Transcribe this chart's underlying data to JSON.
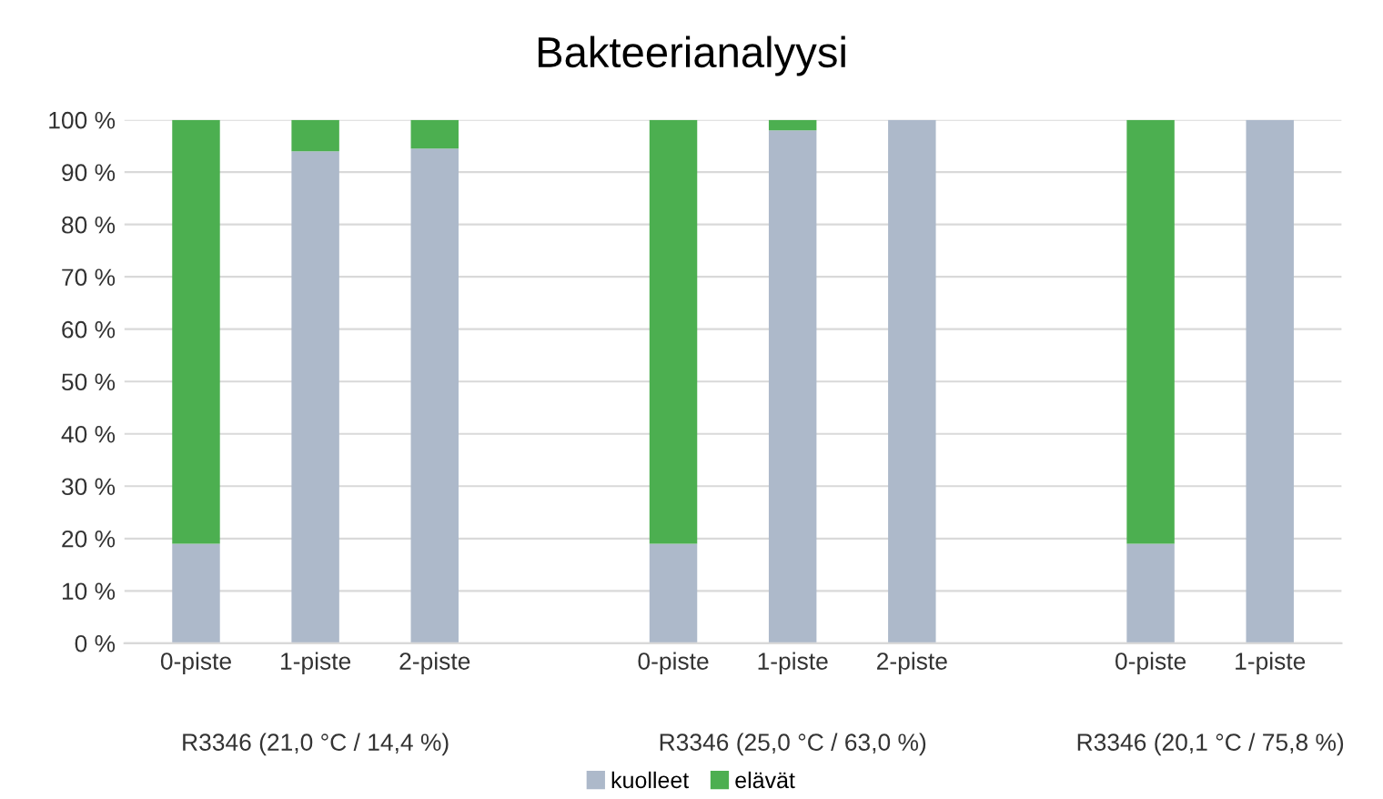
{
  "chart_data": {
    "type": "bar",
    "title": "Bakteerianalyysi",
    "stacked": true,
    "categories": [
      "0-piste",
      "1-piste",
      "2-piste",
      null,
      "0-piste",
      "1-piste",
      "2-piste",
      null,
      "0-piste",
      "1-piste"
    ],
    "series": [
      {
        "name": "kuolleet",
        "color": "#adb9ca",
        "values": [
          19,
          94,
          94.5,
          null,
          19,
          98,
          100,
          null,
          19,
          100
        ]
      },
      {
        "name": "elävät",
        "color": "#4caf50",
        "values": [
          81,
          6,
          5.5,
          null,
          81,
          2,
          0,
          null,
          81,
          0
        ]
      }
    ],
    "annotations": [
      "R3346 (21,0 °C / 14,4 %)",
      "R3346 (25,0 °C / 63,0 %)",
      "R3346 (20,1 °C / 75,8 %)"
    ],
    "ylim": [
      0,
      100
    ],
    "yticks": [
      {
        "value": 0,
        "label": "0 %"
      },
      {
        "value": 10,
        "label": "10 %"
      },
      {
        "value": 20,
        "label": "20 %"
      },
      {
        "value": 30,
        "label": "30 %"
      },
      {
        "value": 40,
        "label": "40 %"
      },
      {
        "value": 50,
        "label": "50 %"
      },
      {
        "value": 60,
        "label": "60 %"
      },
      {
        "value": 70,
        "label": "70 %"
      },
      {
        "value": 80,
        "label": "80 %"
      },
      {
        "value": 90,
        "label": "90 %"
      },
      {
        "value": 100,
        "label": "100 %"
      }
    ],
    "grid": "y",
    "legend": "bottom"
  }
}
